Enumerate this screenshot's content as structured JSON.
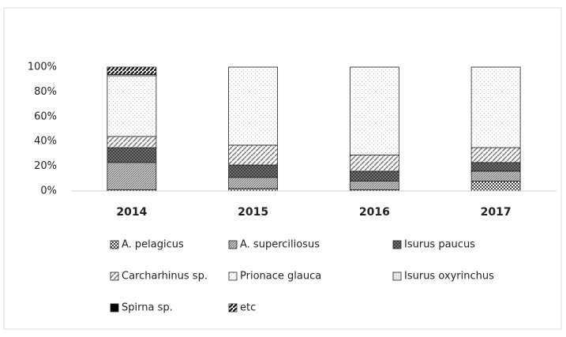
{
  "chart_data": {
    "type": "stacked_bar",
    "categories": [
      "2014",
      "2015",
      "2016",
      "2017"
    ],
    "series": [
      {
        "name": "A. pelagicus",
        "color": "#555555",
        "pattern": "checker",
        "values": [
          1,
          2,
          1,
          8
        ]
      },
      {
        "name": "A. superciliosus",
        "color": "#777777",
        "pattern": "dense",
        "values": [
          22,
          9,
          7,
          8
        ]
      },
      {
        "name": "Isurus paucus",
        "color": "#222222",
        "pattern": "cross",
        "values": [
          12,
          10,
          8,
          7
        ]
      },
      {
        "name": "Carcharhinus sp.",
        "color": "#666666",
        "pattern": "hatch",
        "values": [
          9,
          16,
          13,
          12
        ]
      },
      {
        "name": "Prionace glauca",
        "color": "#888888",
        "pattern": "dots",
        "values": [
          49,
          63,
          71,
          65
        ]
      },
      {
        "name": "Isurus oxyrinchus",
        "color": "#aaaaaa",
        "pattern": "light",
        "values": [
          1,
          0,
          0,
          0
        ]
      },
      {
        "name": "Spirna sp.",
        "color": "#000000",
        "pattern": "solid",
        "values": [
          0,
          0,
          0,
          0
        ]
      },
      {
        "name": "etc",
        "color": "#111111",
        "pattern": "stripe",
        "values": [
          6,
          0,
          0,
          0
        ]
      }
    ],
    "ylim": [
      0,
      100
    ],
    "yticks": [
      {
        "value": 0,
        "label": "0%"
      },
      {
        "value": 20,
        "label": "20%"
      },
      {
        "value": 40,
        "label": "40%"
      },
      {
        "value": 60,
        "label": "60%"
      },
      {
        "value": 80,
        "label": "80%"
      },
      {
        "value": 100,
        "label": "100%"
      }
    ],
    "grid": false
  }
}
